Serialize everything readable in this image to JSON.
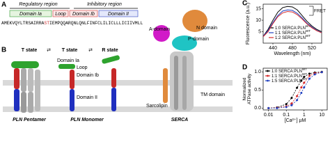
{
  "panel_a": {
    "label": "A",
    "regulatory": "Regulatory region",
    "inhibitory": "Inhibitory region",
    "domains": [
      "Domain Ia",
      "Loop",
      "Domain Ib",
      "Domain II"
    ],
    "sequence": [
      "AMEKVQYLTRSAIRRA",
      "ST",
      "IEMPQ",
      "QARQNLQNLFINFCLILICLLLICIIVMLL"
    ]
  },
  "panel_b": {
    "label": "B",
    "states": [
      "T state",
      "T state",
      "R state"
    ],
    "monomer_labels": [
      "Domain Ia",
      "Loop",
      "Domain Ib",
      "Domain II"
    ],
    "captions": [
      "PLN Pentamer",
      "PLN Monomer",
      "SERCA"
    ],
    "serca_labels": [
      "A-domain",
      "N domain",
      "P-domain",
      "Sarcolipin",
      "TM domain"
    ]
  },
  "chart_data": [
    {
      "type": "line",
      "panel": "C",
      "ylabel": "Fluorescence (a.u.)",
      "xlabel": "Wavelength (nm)",
      "annotation": "FRET",
      "legend": "lower center",
      "x": [
        420,
        430,
        440,
        450,
        460,
        470,
        480,
        490,
        500,
        510,
        520,
        530,
        540
      ],
      "xlim": [
        420,
        540
      ],
      "xticks": [
        440,
        480,
        520
      ],
      "ylim": [
        0,
        17
      ],
      "yticks": [
        5,
        10,
        15
      ],
      "series": [
        {
          "name": "1:0 SERCA:PLN",
          "name_sup": "WT",
          "color": "#000000",
          "values": [
            3,
            6,
            10,
            13.5,
            15.5,
            16,
            15.8,
            14.5,
            12,
            9.5,
            7.5,
            6,
            5
          ]
        },
        {
          "name": "1:1 SERCA:PLN",
          "name_sup": "WT",
          "color": "#1f3fbf",
          "values": [
            3,
            5.5,
            9,
            12,
            14,
            14.5,
            14.3,
            13,
            11,
            8.7,
            7,
            5.6,
            4.6
          ]
        },
        {
          "name": "1:2 SERCA:PLN",
          "name_sup": "WT",
          "color": "#d62728",
          "values": [
            2.8,
            5,
            8.5,
            11.5,
            13.2,
            13.8,
            13.6,
            12.4,
            10.5,
            8.4,
            6.7,
            5.4,
            4.5
          ]
        }
      ]
    },
    {
      "type": "scatter",
      "panel": "D",
      "ylabel": "Normalized ATPase activity",
      "xlabel": "[Ca²⁺] µM",
      "legend": "upper left",
      "log_x": true,
      "x": [
        0.01,
        0.03,
        0.1,
        0.2,
        0.4,
        0.7,
        1,
        2,
        4,
        10
      ],
      "xlim": [
        0.005,
        20
      ],
      "xticks": [
        0.01,
        0.1,
        1,
        10
      ],
      "ylim": [
        -0.05,
        1.1
      ],
      "yticks": [
        {
          "value": 0,
          "label": "0.0"
        },
        {
          "value": 0.5,
          "label": "0.5"
        },
        {
          "value": 1,
          "label": "1.0"
        }
      ],
      "series": [
        {
          "name": "1:0 SERCA:PLN",
          "name_sup": "WT",
          "color": "#000000",
          "values": [
            0,
            0.02,
            0.11,
            0.28,
            0.56,
            0.76,
            0.86,
            0.95,
            0.98,
            1
          ]
        },
        {
          "name": "1:1 SERCA:PLN",
          "name_sup": "WT",
          "color": "#d62728",
          "values": [
            0,
            0.01,
            0.05,
            0.13,
            0.33,
            0.57,
            0.7,
            0.89,
            0.96,
            0.99
          ]
        },
        {
          "name": "1:5 SERCA:PLN",
          "name_sup": "WT",
          "color": "#1f3fbf",
          "values": [
            0,
            0,
            0.03,
            0.08,
            0.22,
            0.42,
            0.57,
            0.81,
            0.93,
            0.99
          ]
        }
      ]
    }
  ]
}
